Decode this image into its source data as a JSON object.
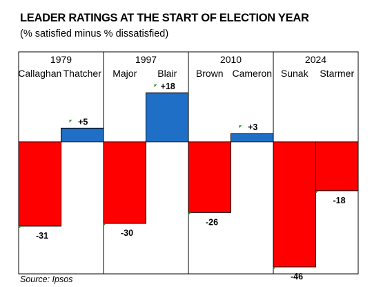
{
  "title": "LEADER RATINGS AT THE START OF ELECTION YEAR",
  "subtitle": "(% satisfied minus % dissatisfied)",
  "source": "Source: Ipsos",
  "colors": {
    "negative": "#ff0000",
    "positive": "#1f6fc6",
    "border": "#000000",
    "marker": "#2e8b2e"
  },
  "chart_data": {
    "type": "bar",
    "title": "LEADER RATINGS AT THE START OF ELECTION YEAR",
    "subtitle": "(% satisfied minus % dissatisfied)",
    "ylim": [
      -50,
      22
    ],
    "groups": [
      {
        "year": "1979",
        "leaders": [
          {
            "name": "Callaghan",
            "value": -31
          },
          {
            "name": "Thatcher",
            "value": 5
          }
        ]
      },
      {
        "year": "1997",
        "leaders": [
          {
            "name": "Major",
            "value": -30
          },
          {
            "name": "Blair",
            "value": 18
          }
        ]
      },
      {
        "year": "2010",
        "leaders": [
          {
            "name": "Brown",
            "value": -26
          },
          {
            "name": "Cameron",
            "value": 3
          }
        ]
      },
      {
        "year": "2024",
        "leaders": [
          {
            "name": "Sunak",
            "value": -46
          },
          {
            "name": "Starmer",
            "value": -18
          }
        ]
      }
    ]
  }
}
